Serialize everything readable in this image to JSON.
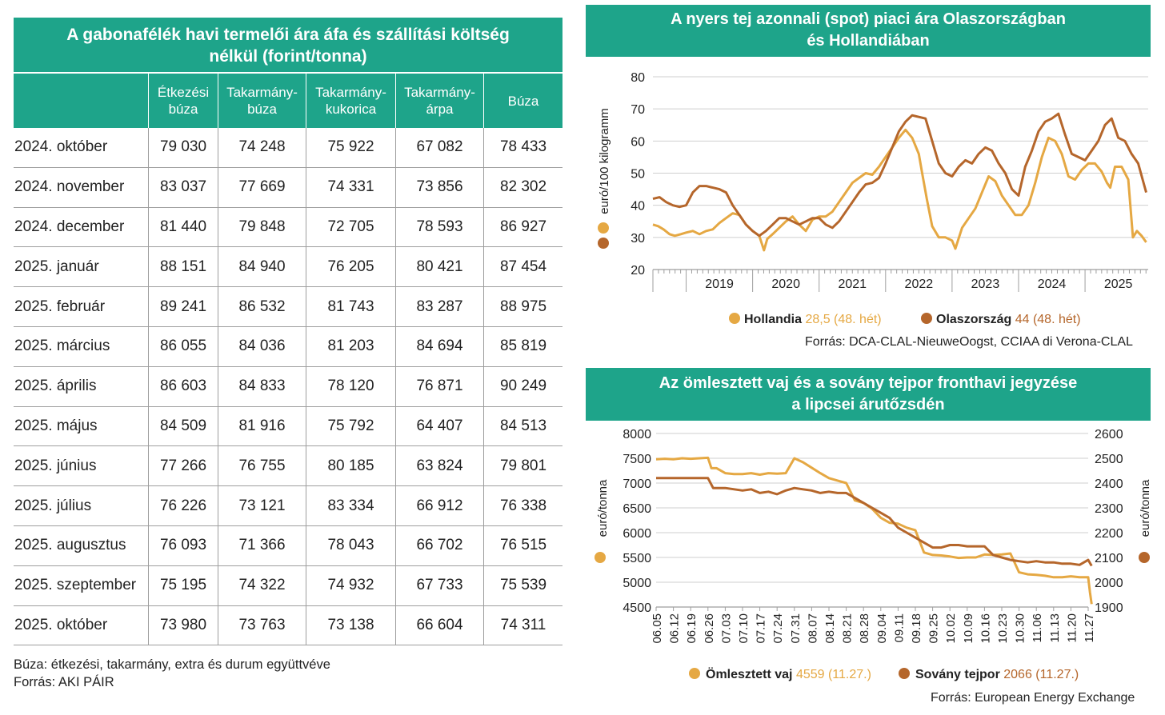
{
  "table": {
    "title_line1": "A gabonafélék havi termelői ára áfa és szállítási költség",
    "title_line2": "nélkül (forint/tonna)",
    "headers": [
      {
        "l1": "",
        "l2": ""
      },
      {
        "l1": "Étkezési",
        "l2": "búza"
      },
      {
        "l1": "Takarmány-",
        "l2": "búza"
      },
      {
        "l1": "Takarmány-",
        "l2": "kukorica"
      },
      {
        "l1": "Takarmány-",
        "l2": "árpa"
      },
      {
        "l1": "Búza",
        "l2": ""
      }
    ],
    "rows": [
      [
        "2024. október",
        "79 030",
        "74 248",
        "75 922",
        "67 082",
        "78 433"
      ],
      [
        "2024. november",
        "83 037",
        "77 669",
        "74 331",
        "73 856",
        "82 302"
      ],
      [
        "2024. december",
        "81 440",
        "79 848",
        "72 705",
        "78 593",
        "86 927"
      ],
      [
        "2025. január",
        "88 151",
        "84 940",
        "76 205",
        "80 421",
        "87 454"
      ],
      [
        "2025. február",
        "89 241",
        "86 532",
        "81 743",
        "83 287",
        "88 975"
      ],
      [
        "2025. március",
        "86 055",
        "84 036",
        "81 203",
        "84 694",
        "85 819"
      ],
      [
        "2025. április",
        "86 603",
        "84 833",
        "78 120",
        "76 871",
        "90 249"
      ],
      [
        "2025. május",
        "84 509",
        "81 916",
        "75 792",
        "64 407",
        "84 513"
      ],
      [
        "2025. június",
        "77 266",
        "76 755",
        "80 185",
        "63 824",
        "79 801"
      ],
      [
        "2025. július",
        "76 226",
        "73 121",
        "83 334",
        "66 912",
        "76 338"
      ],
      [
        "2025. augusztus",
        "76 093",
        "71 366",
        "78 043",
        "66 702",
        "76 515"
      ],
      [
        "2025. szeptember",
        "75 195",
        "74 322",
        "74 932",
        "67 733",
        "75 539"
      ],
      [
        "2025. október",
        "73 980",
        "73 763",
        "73 138",
        "66 604",
        "74 311"
      ]
    ],
    "note": "Búza: étkezési, takarmány, extra és durum együttvéve",
    "source": "Forrás: AKI PÁIR"
  },
  "colors": {
    "teal": "#1ea48a",
    "light": "#e5a843",
    "dark": "#b5662b",
    "axis": "#9e9e9e",
    "grid": "#cfcfcf"
  },
  "chart_data": [
    {
      "type": "line",
      "title_line1": "A nyers tej azonnali (spot) piaci ára Olaszországban",
      "title_line2": "és Hollandiában",
      "ylabel": "euró/100 kilogramm",
      "ylim": [
        20,
        80
      ],
      "yticks": [
        20,
        30,
        40,
        50,
        60,
        70,
        80
      ],
      "xlim": [
        2018.5,
        2025.95
      ],
      "xtick_labels": [
        "2019",
        "2020",
        "2021",
        "2022",
        "2023",
        "2024",
        "2025"
      ],
      "series": [
        {
          "name": "Hollandia",
          "value_text": "28,5 (48. hét)",
          "color": "#e5a843",
          "x": [
            2018.5,
            2018.58,
            2018.66,
            2018.75,
            2018.83,
            2018.92,
            2019.0,
            2019.1,
            2019.2,
            2019.3,
            2019.4,
            2019.5,
            2019.6,
            2019.7,
            2019.8,
            2019.9,
            2020.0,
            2020.1,
            2020.17,
            2020.22,
            2020.3,
            2020.4,
            2020.5,
            2020.6,
            2020.7,
            2020.8,
            2020.9,
            2021.0,
            2021.1,
            2021.2,
            2021.3,
            2021.4,
            2021.5,
            2021.6,
            2021.7,
            2021.8,
            2021.9,
            2022.0,
            2022.1,
            2022.2,
            2022.3,
            2022.4,
            2022.5,
            2022.55,
            2022.62,
            2022.7,
            2022.8,
            2022.9,
            2023.0,
            2023.05,
            2023.15,
            2023.25,
            2023.35,
            2023.45,
            2023.55,
            2023.65,
            2023.75,
            2023.85,
            2023.95,
            2024.05,
            2024.15,
            2024.25,
            2024.35,
            2024.45,
            2024.55,
            2024.65,
            2024.75,
            2024.85,
            2024.95,
            2025.05,
            2025.15,
            2025.25,
            2025.33,
            2025.38,
            2025.45,
            2025.55,
            2025.65,
            2025.72,
            2025.78,
            2025.85,
            2025.92
          ],
          "y": [
            34,
            33.5,
            32.5,
            31,
            30.5,
            31,
            31.5,
            32,
            31,
            32,
            32.5,
            34.5,
            36,
            37.5,
            37,
            34,
            32,
            30.5,
            26,
            29.5,
            31,
            33,
            35,
            36.5,
            34,
            32,
            35.5,
            36.5,
            36.5,
            38,
            41,
            44,
            47,
            48.5,
            50,
            49.5,
            52,
            55,
            58,
            61,
            63.5,
            61,
            56,
            50,
            42,
            33.5,
            30,
            30,
            29,
            26.5,
            33,
            36,
            39,
            44,
            49,
            47.5,
            43,
            40,
            37,
            37,
            40,
            47,
            55,
            61,
            60,
            56,
            49,
            48,
            51,
            53,
            53,
            50.5,
            47,
            45.5,
            52,
            52,
            48,
            30,
            32,
            30.5,
            28.5
          ]
        },
        {
          "name": "Olaszország",
          "value_text": "44 (48. hét)",
          "color": "#b5662b",
          "x": [
            2018.5,
            2018.6,
            2018.7,
            2018.8,
            2018.9,
            2019.0,
            2019.1,
            2019.2,
            2019.3,
            2019.4,
            2019.5,
            2019.6,
            2019.7,
            2019.8,
            2019.9,
            2020.0,
            2020.1,
            2020.2,
            2020.3,
            2020.4,
            2020.5,
            2020.6,
            2020.7,
            2020.8,
            2020.9,
            2021.0,
            2021.1,
            2021.2,
            2021.3,
            2021.4,
            2021.5,
            2021.6,
            2021.7,
            2021.8,
            2021.9,
            2022.0,
            2022.1,
            2022.2,
            2022.3,
            2022.4,
            2022.5,
            2022.6,
            2022.7,
            2022.8,
            2022.9,
            2023.0,
            2023.1,
            2023.2,
            2023.3,
            2023.4,
            2023.5,
            2023.6,
            2023.7,
            2023.8,
            2023.9,
            2024.0,
            2024.1,
            2024.2,
            2024.3,
            2024.4,
            2024.5,
            2024.6,
            2024.7,
            2024.8,
            2024.9,
            2025.0,
            2025.1,
            2025.2,
            2025.3,
            2025.4,
            2025.5,
            2025.6,
            2025.7,
            2025.8,
            2025.92
          ],
          "y": [
            42,
            42.5,
            41,
            40,
            39.5,
            40,
            44,
            46,
            46,
            45.5,
            45,
            44,
            40,
            37,
            34,
            32,
            30.5,
            32,
            34,
            36,
            36,
            35,
            34,
            35,
            36,
            36,
            34,
            33,
            35,
            38,
            41,
            44,
            46.5,
            47,
            48.5,
            53,
            58,
            63,
            66,
            68,
            67.5,
            67,
            60,
            53,
            50,
            49,
            52,
            54,
            53,
            56,
            58,
            57,
            53,
            50,
            45,
            43,
            52,
            57,
            63,
            66,
            67,
            68.5,
            62,
            56,
            55,
            54,
            57,
            60,
            65,
            67,
            61,
            60,
            56,
            53,
            44
          ]
        }
      ],
      "source": "Forrás: DCA-CLAL-NieuweOogst, CCIAA di Verona-CLAL"
    },
    {
      "type": "line",
      "title_line1": "Az ömlesztett vaj és a sovány tejpor fronthavi jegyzése",
      "title_line2": "a lipcsei árutőzsdén",
      "ylabel": "euró/tonna",
      "ylabel_right": "euró/tonna",
      "ylim": [
        4500,
        8000
      ],
      "yticks": [
        4500,
        5000,
        5500,
        6000,
        6500,
        7000,
        7500,
        8000
      ],
      "ylim_right": [
        1900,
        2600
      ],
      "yticks_right": [
        1900,
        2000,
        2100,
        2200,
        2300,
        2400,
        2500,
        2600
      ],
      "categories": [
        "06.05",
        "06.12",
        "06.19",
        "06.26",
        "07.03",
        "07.10",
        "07.17",
        "07.24",
        "07.31",
        "08.07",
        "08.14",
        "08.21",
        "08.28",
        "09.04",
        "09.11",
        "09.18",
        "09.25",
        "10.02",
        "10.09",
        "10.16",
        "10.23",
        "10.30",
        "11.06",
        "11.13",
        "11.20",
        "11.27"
      ],
      "series": [
        {
          "name": "Ömlesztett vaj",
          "value_text": "4559 (11.27.)",
          "axis": "left",
          "color": "#e5a843",
          "x": [
            0,
            0.5,
            1,
            1.5,
            2,
            2.5,
            3,
            3.2,
            3.5,
            4,
            4.5,
            5,
            5.5,
            6,
            6.5,
            7,
            7.5,
            8,
            8.5,
            9,
            9.5,
            10,
            10.5,
            11,
            11.5,
            12,
            12.5,
            13,
            13.5,
            14,
            14.5,
            15,
            15.5,
            16,
            16.5,
            17,
            17.5,
            18,
            18.5,
            19,
            19.5,
            20,
            20.5,
            21,
            21.5,
            22,
            22.5,
            23,
            23.5,
            24,
            24.5,
            25,
            25.1,
            25.2
          ],
          "y": [
            7480,
            7490,
            7480,
            7500,
            7490,
            7500,
            7510,
            7300,
            7300,
            7200,
            7180,
            7180,
            7200,
            7170,
            7200,
            7190,
            7200,
            7500,
            7420,
            7310,
            7200,
            7100,
            7050,
            7000,
            6650,
            6600,
            6480,
            6300,
            6200,
            6180,
            6100,
            6050,
            5600,
            5550,
            5540,
            5520,
            5490,
            5500,
            5500,
            5560,
            5550,
            5560,
            5580,
            5200,
            5160,
            5150,
            5130,
            5100,
            5100,
            5120,
            5100,
            5100,
            4800,
            4559
          ]
        },
        {
          "name": "Sovány tejpor",
          "value_text": "2066 (11.27.)",
          "axis": "right",
          "color": "#b5662b",
          "x": [
            0,
            1,
            2,
            3,
            3.3,
            4,
            5,
            5.5,
            6,
            6.5,
            7,
            7.5,
            8,
            8.5,
            9,
            9.5,
            10,
            10.5,
            11,
            11.5,
            12,
            12.5,
            13,
            13.5,
            14,
            14.5,
            15,
            15.5,
            16,
            16.5,
            17,
            17.5,
            18,
            18.5,
            19,
            19.5,
            20,
            20.5,
            21,
            21.5,
            22,
            22.5,
            23,
            23.5,
            24,
            24.5,
            25,
            25.2
          ],
          "y": [
            2420,
            2420,
            2420,
            2420,
            2380,
            2380,
            2370,
            2375,
            2360,
            2365,
            2355,
            2370,
            2380,
            2375,
            2370,
            2360,
            2365,
            2360,
            2360,
            2340,
            2320,
            2300,
            2280,
            2260,
            2220,
            2200,
            2180,
            2160,
            2140,
            2140,
            2150,
            2150,
            2145,
            2145,
            2145,
            2110,
            2100,
            2090,
            2085,
            2080,
            2085,
            2080,
            2080,
            2075,
            2075,
            2070,
            2090,
            2066
          ]
        }
      ],
      "source": "Forrás: European Energy Exchange"
    }
  ]
}
